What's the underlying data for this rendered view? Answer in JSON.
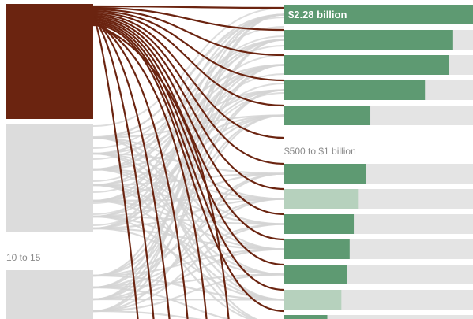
{
  "chart_data": {
    "type": "flow-bar",
    "title": "",
    "labels": {
      "top_bar_value": "$2.28 billion",
      "group_label": "$500 to $1 billion",
      "left_group_label": "10 to 15"
    },
    "left_blocks": [
      {
        "name": "",
        "highlighted": true
      },
      {
        "name": "",
        "highlighted": false
      },
      {
        "name": "10 to 15",
        "highlighted": false
      }
    ],
    "bars": [
      {
        "value": 2.28,
        "style": "primary"
      },
      {
        "value": 2.04,
        "style": "primary"
      },
      {
        "value": 1.99,
        "style": "primary"
      },
      {
        "value": 1.7,
        "style": "primary"
      },
      {
        "value": 1.04,
        "style": "primary"
      },
      {
        "value": 0.99,
        "style": "primary"
      },
      {
        "value": 0.89,
        "style": "light"
      },
      {
        "value": 0.84,
        "style": "primary"
      },
      {
        "value": 0.79,
        "style": "primary"
      },
      {
        "value": 0.76,
        "style": "primary"
      },
      {
        "value": 0.69,
        "style": "light"
      },
      {
        "value": 0.52,
        "style": "primary"
      }
    ],
    "xlim": [
      0,
      2.28
    ],
    "colors": {
      "highlight": "#6b2410",
      "flow_highlight": "#6b2410",
      "flow_muted": "#d4d4d4",
      "block_muted": "#dcdcdc",
      "bar_bg": "#e4e4e4",
      "bar_primary": "#5e9a72",
      "bar_light": "#b6d1bd",
      "label_text_light": "#ffffff",
      "label_text_dark": "#8a8a8a"
    }
  }
}
